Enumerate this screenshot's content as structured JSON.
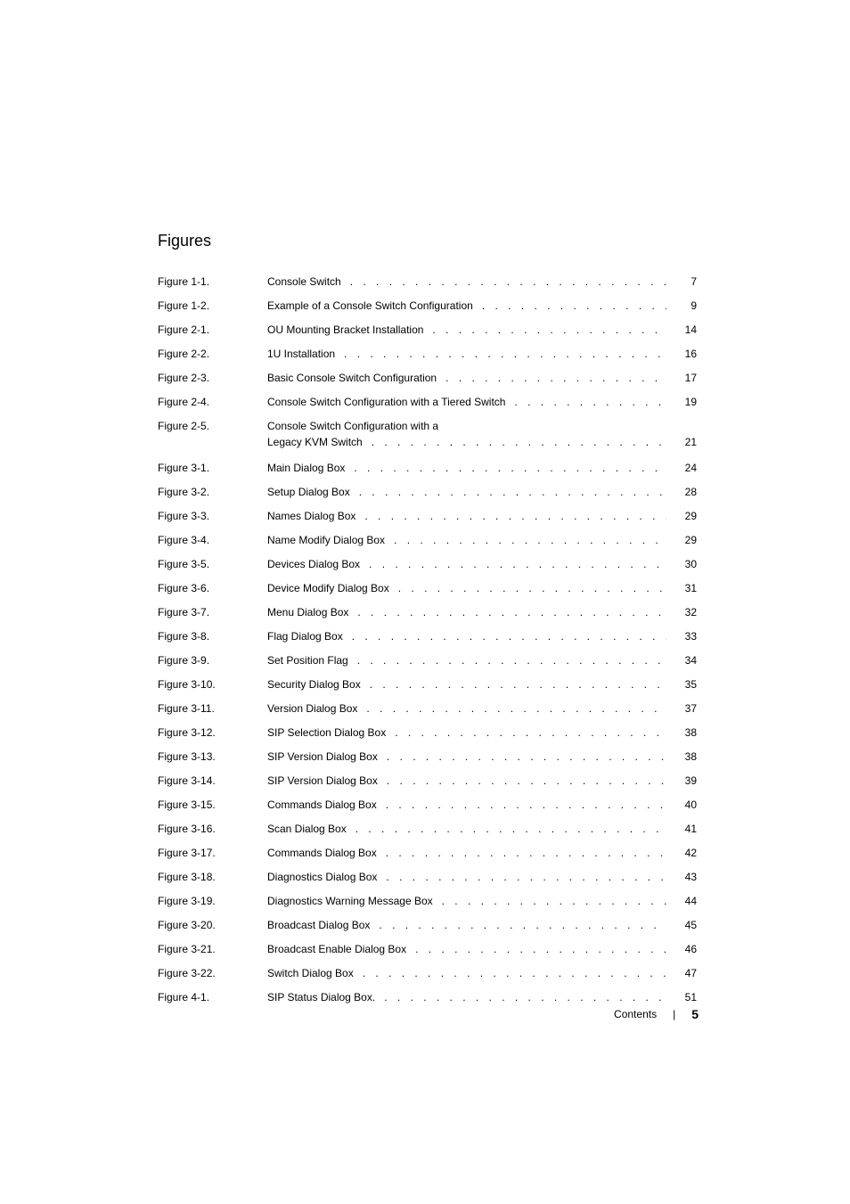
{
  "section_title": "Figures",
  "footer": {
    "label": "Contents",
    "separator": "|",
    "page_number": "5"
  },
  "figures": [
    {
      "label": "Figure 1-1.",
      "title": "Console Switch",
      "page": "7"
    },
    {
      "label": "Figure 1-2.",
      "title": "Example of a Console Switch Configuration",
      "page": "9"
    },
    {
      "label": "Figure 2-1.",
      "title": "OU Mounting Bracket Installation",
      "page": "14"
    },
    {
      "label": "Figure 2-2.",
      "title": "1U Installation",
      "page": "16"
    },
    {
      "label": "Figure 2-3.",
      "title": "Basic Console Switch Configuration",
      "page": "17"
    },
    {
      "label": "Figure 2-4.",
      "title": "Console Switch Configuration with a Tiered Switch",
      "page": "19"
    },
    {
      "label": "Figure 2-5.",
      "title_line1": "Console Switch Configuration with a",
      "title_line2": "Legacy KVM Switch",
      "page": "21",
      "multiline": true
    },
    {
      "label": "Figure 3-1.",
      "title": "Main Dialog Box",
      "page": "24"
    },
    {
      "label": "Figure 3-2.",
      "title": "Setup Dialog Box",
      "page": "28"
    },
    {
      "label": "Figure 3-3.",
      "title": "Names Dialog Box",
      "page": "29"
    },
    {
      "label": "Figure 3-4.",
      "title": "Name Modify Dialog Box",
      "page": "29"
    },
    {
      "label": "Figure 3-5.",
      "title": "Devices Dialog Box",
      "page": "30"
    },
    {
      "label": "Figure 3-6.",
      "title": "Device Modify Dialog Box",
      "page": "31"
    },
    {
      "label": "Figure 3-7.",
      "title": "Menu Dialog Box",
      "page": "32"
    },
    {
      "label": "Figure 3-8.",
      "title": "Flag Dialog Box",
      "page": "33"
    },
    {
      "label": "Figure 3-9.",
      "title": "Set Position Flag",
      "page": "34"
    },
    {
      "label": "Figure 3-10.",
      "title": "Security Dialog Box",
      "page": "35"
    },
    {
      "label": "Figure 3-11.",
      "title": "Version Dialog Box",
      "page": "37"
    },
    {
      "label": "Figure 3-12.",
      "title": "SIP Selection Dialog Box",
      "page": "38"
    },
    {
      "label": "Figure 3-13.",
      "title": "SIP Version Dialog Box",
      "page": "38"
    },
    {
      "label": "Figure 3-14.",
      "title": "SIP Version Dialog Box",
      "page": "39"
    },
    {
      "label": "Figure 3-15.",
      "title": "Commands Dialog Box",
      "page": "40"
    },
    {
      "label": "Figure 3-16.",
      "title": "Scan Dialog Box",
      "page": "41"
    },
    {
      "label": "Figure 3-17.",
      "title": "Commands Dialog Box",
      "page": "42"
    },
    {
      "label": "Figure 3-18.",
      "title": "Diagnostics Dialog Box",
      "page": "43"
    },
    {
      "label": "Figure 3-19.",
      "title": "Diagnostics Warning Message Box",
      "page": "44"
    },
    {
      "label": "Figure 3-20.",
      "title": "Broadcast Dialog Box",
      "page": "45"
    },
    {
      "label": "Figure 3-21.",
      "title": "Broadcast Enable Dialog Box",
      "page": "46"
    },
    {
      "label": "Figure 3-22.",
      "title": "Switch Dialog Box",
      "page": "47"
    },
    {
      "label": "Figure 4-1.",
      "title": "SIP Status Dialog Box.",
      "page": "51"
    }
  ]
}
